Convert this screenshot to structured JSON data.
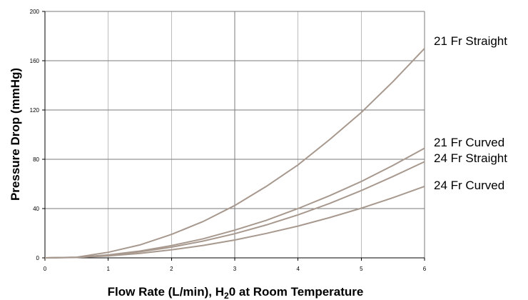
{
  "chart_data": {
    "type": "line",
    "xlabel_parts": {
      "before": "Flow Rate (L/min), H",
      "sub": "2",
      "after": "0 at Room Temperature"
    },
    "ylabel": "Pressure Drop (mmHg)",
    "xlim": [
      0,
      6
    ],
    "ylim": [
      0,
      200
    ],
    "x_ticks": [
      0,
      1,
      2,
      3,
      4,
      5,
      6
    ],
    "y_ticks": [
      0,
      40,
      80,
      120,
      160,
      200
    ],
    "grid": true,
    "line_color": "#a8998f",
    "series": [
      {
        "name": "21 Fr Straight",
        "x": [
          0,
          0.5,
          1,
          1.5,
          2,
          2.5,
          3,
          3.5,
          4,
          4.5,
          5,
          5.5,
          6
        ],
        "y": [
          0,
          0.5,
          4.5,
          10.5,
          19,
          29.5,
          42.5,
          58,
          75.5,
          96,
          118,
          143,
          170
        ]
      },
      {
        "name": "21 Fr Curved",
        "x": [
          0,
          0.5,
          1,
          1.5,
          2,
          2.5,
          3,
          3.5,
          4,
          4.5,
          5,
          5.5,
          6
        ],
        "y": [
          0,
          0.4,
          2.4,
          5.5,
          10,
          15.5,
          22.5,
          30.5,
          40,
          50.5,
          62,
          75,
          89
        ]
      },
      {
        "name": "24 Fr Straight",
        "x": [
          0,
          0.5,
          1,
          1.5,
          2,
          2.5,
          3,
          3.5,
          4,
          4.5,
          5,
          5.5,
          6
        ],
        "y": [
          0,
          0.4,
          2.1,
          4.9,
          8.7,
          13.6,
          19.6,
          26.7,
          34.9,
          44.2,
          54.6,
          66,
          78
        ]
      },
      {
        "name": "24 Fr Curved",
        "x": [
          0,
          0.5,
          1,
          1.5,
          2,
          2.5,
          3,
          3.5,
          4,
          4.5,
          5,
          5.5,
          6
        ],
        "y": [
          0,
          0.3,
          1.6,
          3.6,
          6.5,
          10.1,
          14.5,
          19.8,
          25.8,
          32.7,
          40.3,
          48.8,
          58
        ]
      }
    ]
  }
}
